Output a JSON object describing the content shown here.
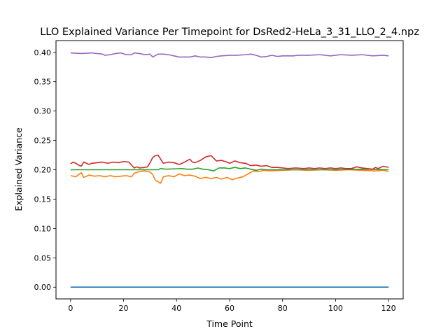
{
  "chart_data": {
    "type": "line",
    "title": "LLO Explained Variance Per Timepoint for DsRed2-HeLa_3_31_LLO_2_4.npz",
    "xlabel": "Time Point",
    "ylabel": "Explained Variance",
    "xlim": [
      -5.5,
      125.5
    ],
    "ylim": [
      -0.02,
      0.42
    ],
    "xticks": [
      0,
      20,
      40,
      60,
      80,
      100,
      120
    ],
    "yticks": [
      0.0,
      0.05,
      0.1,
      0.15,
      0.2,
      0.25,
      0.3,
      0.35,
      0.4
    ],
    "ytick_labels": [
      "0.00",
      "0.05",
      "0.10",
      "0.15",
      "0.20",
      "0.25",
      "0.30",
      "0.35",
      "0.40"
    ],
    "grid": false,
    "legend": "none",
    "series": [
      {
        "color": "#1f77b4",
        "points": [
          [
            0,
            0.0
          ],
          [
            120,
            0.0
          ]
        ]
      },
      {
        "color": "#ff7f0e",
        "points": [
          [
            0,
            0.19
          ],
          [
            2,
            0.188
          ],
          [
            4,
            0.195
          ],
          [
            5,
            0.187
          ],
          [
            7,
            0.191
          ],
          [
            9,
            0.189
          ],
          [
            11,
            0.19
          ],
          [
            13,
            0.188
          ],
          [
            15,
            0.19
          ],
          [
            17,
            0.188
          ],
          [
            19,
            0.189
          ],
          [
            21,
            0.19
          ],
          [
            23,
            0.188
          ],
          [
            24,
            0.194
          ],
          [
            26,
            0.197
          ],
          [
            28,
            0.198
          ],
          [
            30,
            0.196
          ],
          [
            31,
            0.192
          ],
          [
            32,
            0.182
          ],
          [
            34,
            0.177
          ],
          [
            35,
            0.188
          ],
          [
            37,
            0.19
          ],
          [
            39,
            0.188
          ],
          [
            41,
            0.193
          ],
          [
            43,
            0.19
          ],
          [
            45,
            0.191
          ],
          [
            47,
            0.189
          ],
          [
            49,
            0.185
          ],
          [
            51,
            0.187
          ],
          [
            53,
            0.185
          ],
          [
            55,
            0.187
          ],
          [
            57,
            0.184
          ],
          [
            59,
            0.187
          ],
          [
            61,
            0.183
          ],
          [
            63,
            0.186
          ],
          [
            65,
            0.188
          ],
          [
            67,
            0.193
          ],
          [
            69,
            0.198
          ],
          [
            71,
            0.197
          ],
          [
            73,
            0.199
          ],
          [
            75,
            0.198
          ],
          [
            80,
            0.199
          ],
          [
            85,
            0.2
          ],
          [
            90,
            0.199
          ],
          [
            95,
            0.2
          ],
          [
            100,
            0.199
          ],
          [
            105,
            0.2
          ],
          [
            110,
            0.199
          ],
          [
            115,
            0.198
          ],
          [
            118,
            0.199
          ],
          [
            120,
            0.197
          ]
        ]
      },
      {
        "color": "#2ca02c",
        "points": [
          [
            0,
            0.2
          ],
          [
            20,
            0.2
          ],
          [
            33,
            0.2
          ],
          [
            34,
            0.202
          ],
          [
            36,
            0.201
          ],
          [
            42,
            0.202
          ],
          [
            44,
            0.201
          ],
          [
            46,
            0.201
          ],
          [
            48,
            0.203
          ],
          [
            50,
            0.201
          ],
          [
            52,
            0.2
          ],
          [
            54,
            0.198
          ],
          [
            56,
            0.203
          ],
          [
            58,
            0.203
          ],
          [
            60,
            0.202
          ],
          [
            62,
            0.204
          ],
          [
            64,
            0.202
          ],
          [
            66,
            0.203
          ],
          [
            68,
            0.201
          ],
          [
            70,
            0.199
          ],
          [
            72,
            0.201
          ],
          [
            74,
            0.2
          ],
          [
            80,
            0.2
          ],
          [
            90,
            0.2
          ],
          [
            100,
            0.2
          ],
          [
            110,
            0.201
          ],
          [
            120,
            0.2
          ]
        ]
      },
      {
        "color": "#d62728",
        "points": [
          [
            0,
            0.21
          ],
          [
            1,
            0.213
          ],
          [
            2,
            0.211
          ],
          [
            3,
            0.208
          ],
          [
            4,
            0.206
          ],
          [
            5,
            0.213
          ],
          [
            6,
            0.211
          ],
          [
            7,
            0.209
          ],
          [
            8,
            0.211
          ],
          [
            10,
            0.212
          ],
          [
            12,
            0.213
          ],
          [
            14,
            0.211
          ],
          [
            16,
            0.213
          ],
          [
            18,
            0.212
          ],
          [
            20,
            0.214
          ],
          [
            22,
            0.213
          ],
          [
            24,
            0.203
          ],
          [
            25,
            0.205
          ],
          [
            26,
            0.203
          ],
          [
            28,
            0.204
          ],
          [
            29,
            0.205
          ],
          [
            30,
            0.212
          ],
          [
            31,
            0.221
          ],
          [
            32,
            0.224
          ],
          [
            33,
            0.225
          ],
          [
            34,
            0.218
          ],
          [
            35,
            0.211
          ],
          [
            37,
            0.213
          ],
          [
            39,
            0.212
          ],
          [
            41,
            0.209
          ],
          [
            43,
            0.213
          ],
          [
            45,
            0.218
          ],
          [
            46,
            0.213
          ],
          [
            47,
            0.212
          ],
          [
            49,
            0.216
          ],
          [
            51,
            0.222
          ],
          [
            53,
            0.224
          ],
          [
            55,
            0.215
          ],
          [
            57,
            0.216
          ],
          [
            59,
            0.213
          ],
          [
            60,
            0.211
          ],
          [
            62,
            0.215
          ],
          [
            64,
            0.212
          ],
          [
            66,
            0.211
          ],
          [
            68,
            0.207
          ],
          [
            70,
            0.208
          ],
          [
            72,
            0.206
          ],
          [
            74,
            0.207
          ],
          [
            76,
            0.204
          ],
          [
            78,
            0.204
          ],
          [
            80,
            0.203
          ],
          [
            82,
            0.202
          ],
          [
            85,
            0.203
          ],
          [
            88,
            0.202
          ],
          [
            90,
            0.203
          ],
          [
            92,
            0.202
          ],
          [
            94,
            0.203
          ],
          [
            96,
            0.202
          ],
          [
            98,
            0.203
          ],
          [
            100,
            0.202
          ],
          [
            102,
            0.203
          ],
          [
            104,
            0.202
          ],
          [
            106,
            0.202
          ],
          [
            108,
            0.205
          ],
          [
            110,
            0.203
          ],
          [
            112,
            0.202
          ],
          [
            114,
            0.201
          ],
          [
            115,
            0.204
          ],
          [
            116,
            0.202
          ],
          [
            118,
            0.206
          ],
          [
            120,
            0.204
          ]
        ]
      },
      {
        "color": "#9467bd",
        "points": [
          [
            0,
            0.399
          ],
          [
            4,
            0.398
          ],
          [
            8,
            0.399
          ],
          [
            12,
            0.397
          ],
          [
            13,
            0.395
          ],
          [
            15,
            0.396
          ],
          [
            17,
            0.398
          ],
          [
            19,
            0.399
          ],
          [
            21,
            0.396
          ],
          [
            23,
            0.396
          ],
          [
            24,
            0.399
          ],
          [
            26,
            0.398
          ],
          [
            28,
            0.396
          ],
          [
            30,
            0.397
          ],
          [
            31,
            0.392
          ],
          [
            33,
            0.397
          ],
          [
            35,
            0.397
          ],
          [
            37,
            0.396
          ],
          [
            39,
            0.394
          ],
          [
            41,
            0.392
          ],
          [
            43,
            0.392
          ],
          [
            45,
            0.392
          ],
          [
            47,
            0.394
          ],
          [
            49,
            0.392
          ],
          [
            51,
            0.392
          ],
          [
            53,
            0.391
          ],
          [
            55,
            0.393
          ],
          [
            57,
            0.394
          ],
          [
            60,
            0.395
          ],
          [
            63,
            0.395
          ],
          [
            66,
            0.396
          ],
          [
            68,
            0.397
          ],
          [
            70,
            0.395
          ],
          [
            72,
            0.392
          ],
          [
            74,
            0.393
          ],
          [
            76,
            0.395
          ],
          [
            78,
            0.393
          ],
          [
            80,
            0.394
          ],
          [
            84,
            0.394
          ],
          [
            86,
            0.395
          ],
          [
            90,
            0.395
          ],
          [
            94,
            0.396
          ],
          [
            98,
            0.394
          ],
          [
            102,
            0.396
          ],
          [
            106,
            0.395
          ],
          [
            110,
            0.396
          ],
          [
            114,
            0.394
          ],
          [
            118,
            0.395
          ],
          [
            120,
            0.394
          ]
        ]
      }
    ]
  }
}
